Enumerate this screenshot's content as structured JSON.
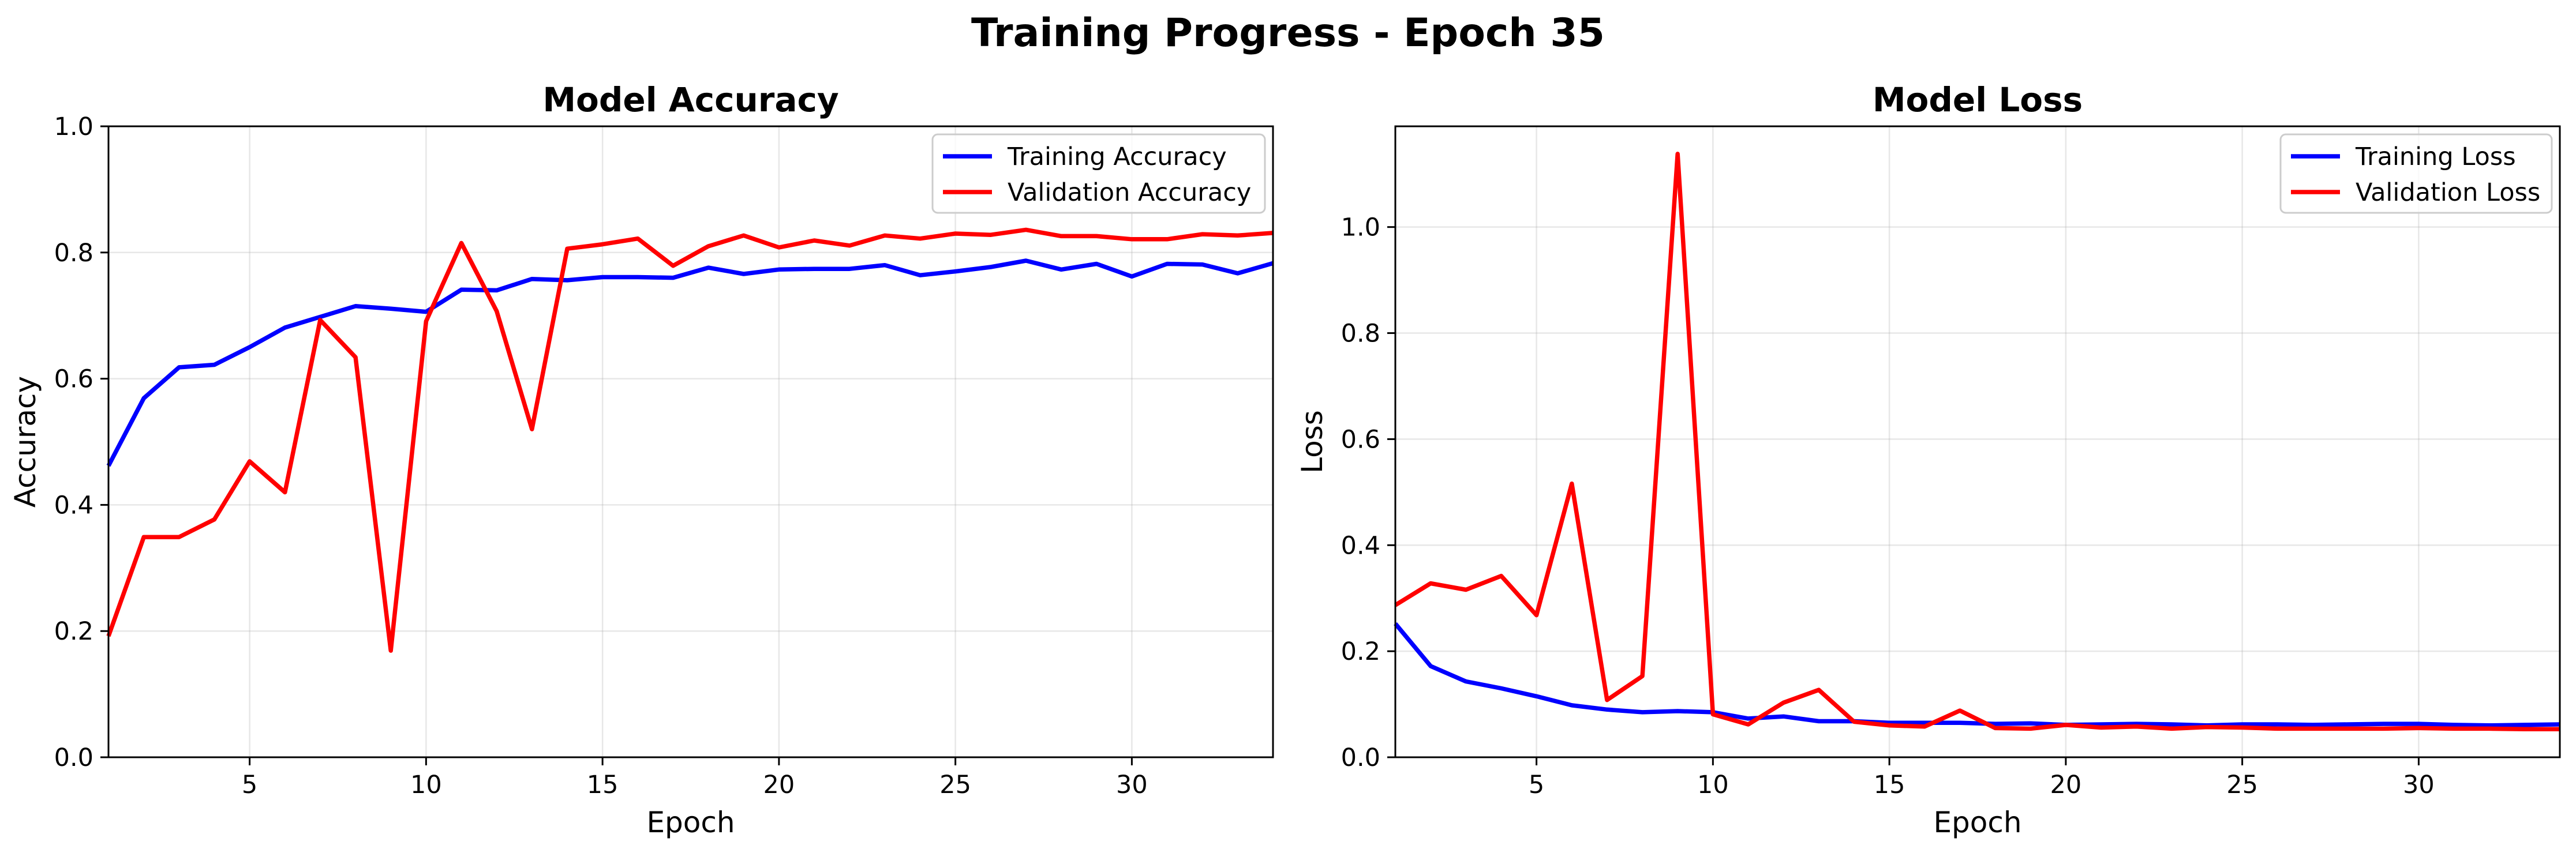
{
  "figure": {
    "title": "Training Progress - Epoch 35"
  },
  "colors": {
    "training": "#0000ff",
    "validation": "#ff0000"
  },
  "chart_data": [
    {
      "type": "line",
      "title": "Model Accuracy",
      "xlabel": "Epoch",
      "ylabel": "Accuracy",
      "xlim": [
        1,
        34
      ],
      "ylim": [
        0.0,
        1.0
      ],
      "xticks": [
        5,
        10,
        15,
        20,
        25,
        30
      ],
      "yticks": [
        0.0,
        0.2,
        0.4,
        0.6,
        0.8,
        1.0
      ],
      "ytick_labels": [
        "0.0",
        "0.2",
        "0.4",
        "0.6",
        "0.8",
        "1.0"
      ],
      "grid": true,
      "legend": "top-right",
      "x": [
        1,
        2,
        3,
        4,
        5,
        6,
        7,
        8,
        9,
        10,
        11,
        12,
        13,
        14,
        15,
        16,
        17,
        18,
        19,
        20,
        21,
        22,
        23,
        24,
        25,
        26,
        27,
        28,
        29,
        30,
        31,
        32,
        33,
        34
      ],
      "series": [
        {
          "name": "Training Accuracy",
          "color": "#0000ff",
          "values": [
            0.462,
            0.569,
            0.618,
            0.622,
            0.65,
            0.681,
            0.698,
            0.715,
            0.711,
            0.706,
            0.741,
            0.74,
            0.758,
            0.756,
            0.761,
            0.761,
            0.76,
            0.776,
            0.766,
            0.773,
            0.774,
            0.774,
            0.78,
            0.764,
            0.77,
            0.777,
            0.787,
            0.773,
            0.782,
            0.762,
            0.782,
            0.781,
            0.767,
            0.783
          ]
        },
        {
          "name": "Validation Accuracy",
          "color": "#ff0000",
          "values": [
            0.192,
            0.349,
            0.349,
            0.377,
            0.469,
            0.42,
            0.693,
            0.634,
            0.169,
            0.691,
            0.815,
            0.707,
            0.52,
            0.806,
            0.813,
            0.822,
            0.779,
            0.81,
            0.827,
            0.808,
            0.819,
            0.811,
            0.827,
            0.822,
            0.83,
            0.828,
            0.836,
            0.826,
            0.826,
            0.821,
            0.821,
            0.829,
            0.827,
            0.831
          ]
        }
      ]
    },
    {
      "type": "line",
      "title": "Model Loss",
      "xlabel": "Epoch",
      "ylabel": "Loss",
      "xlim": [
        1,
        34
      ],
      "ylim": [
        0.0,
        1.19
      ],
      "xticks": [
        5,
        10,
        15,
        20,
        25,
        30
      ],
      "yticks": [
        0.0,
        0.2,
        0.4,
        0.6,
        0.8,
        1.0
      ],
      "ytick_labels": [
        "0.0",
        "0.2",
        "0.4",
        "0.6",
        "0.8",
        "1.0"
      ],
      "grid": true,
      "legend": "top-right",
      "x": [
        1,
        2,
        3,
        4,
        5,
        6,
        7,
        8,
        9,
        10,
        11,
        12,
        13,
        14,
        15,
        16,
        17,
        18,
        19,
        20,
        21,
        22,
        23,
        24,
        25,
        26,
        27,
        28,
        29,
        30,
        31,
        32,
        33,
        34
      ],
      "series": [
        {
          "name": "Training Loss",
          "color": "#0000ff",
          "values": [
            0.252,
            0.172,
            0.143,
            0.13,
            0.115,
            0.098,
            0.09,
            0.085,
            0.087,
            0.085,
            0.073,
            0.077,
            0.068,
            0.068,
            0.065,
            0.065,
            0.065,
            0.063,
            0.064,
            0.061,
            0.062,
            0.063,
            0.062,
            0.06,
            0.062,
            0.062,
            0.061,
            0.062,
            0.063,
            0.063,
            0.061,
            0.06,
            0.061,
            0.062
          ]
        },
        {
          "name": "Validation Loss",
          "color": "#ff0000",
          "values": [
            0.287,
            0.328,
            0.316,
            0.342,
            0.268,
            0.516,
            0.108,
            0.153,
            1.138,
            0.081,
            0.062,
            0.103,
            0.127,
            0.067,
            0.06,
            0.058,
            0.088,
            0.055,
            0.054,
            0.061,
            0.056,
            0.058,
            0.054,
            0.057,
            0.056,
            0.054,
            0.054,
            0.054,
            0.054,
            0.055,
            0.054,
            0.054,
            0.053,
            0.053
          ]
        }
      ]
    }
  ]
}
